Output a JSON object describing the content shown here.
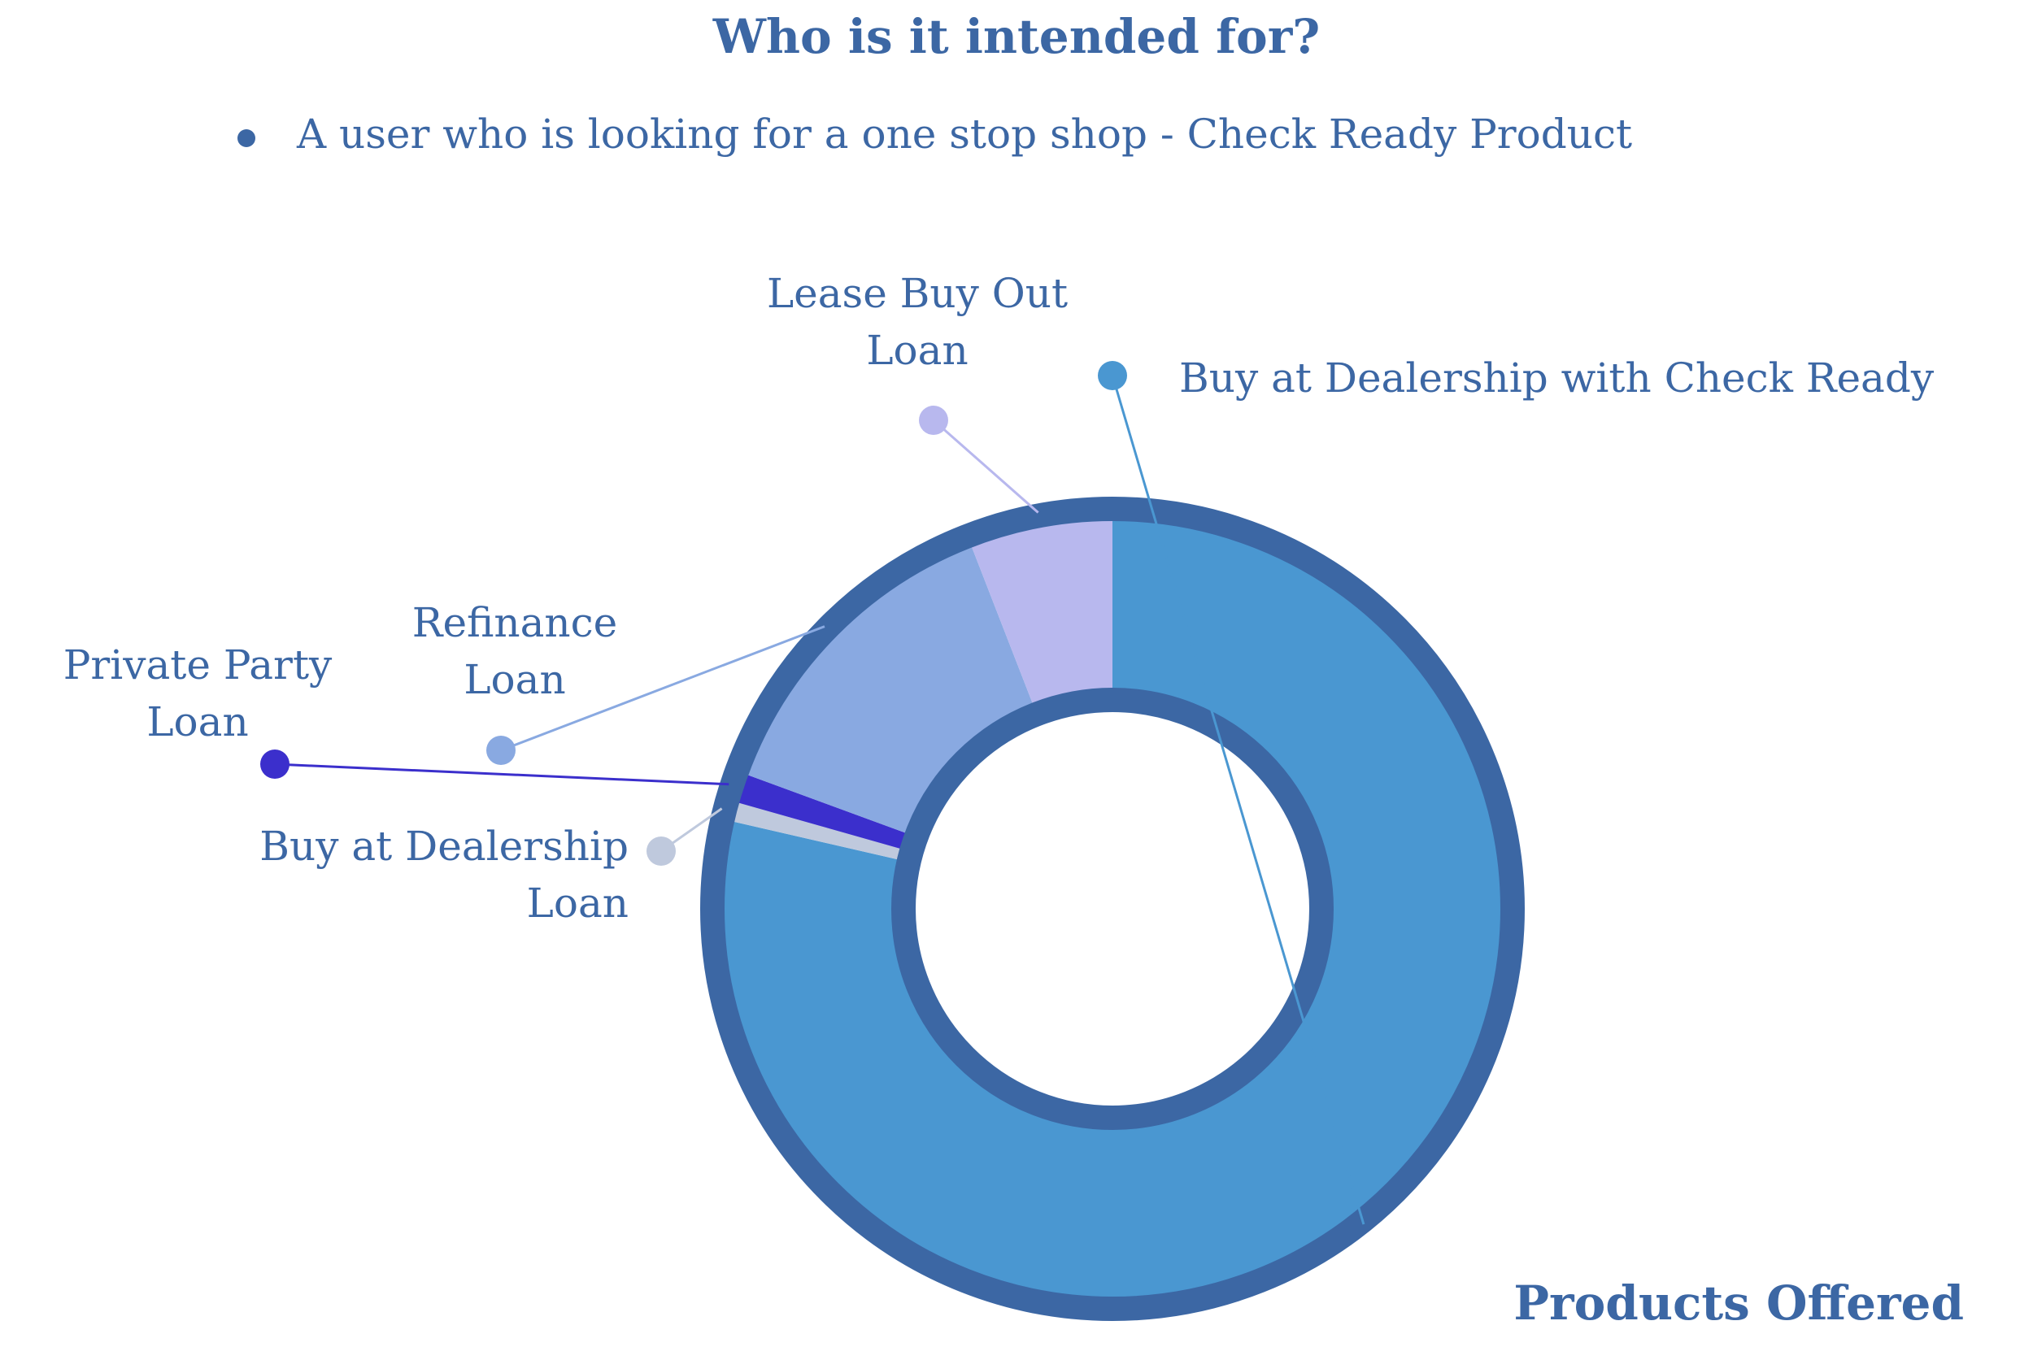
{
  "title": "Who is it intended for?",
  "bullet_text": "A user who is looking for a one stop shop - Check Ready Product",
  "footer_label": "Products Offered",
  "colors": {
    "text": "#3C67A4",
    "ring_outline": "#3C67A4",
    "background": "#FFFFFF"
  },
  "chart_data": {
    "type": "pie",
    "variant": "donut",
    "title": "Products Offered",
    "legend": "none",
    "slices": [
      {
        "label": "Buy at Dealership with Check Ready",
        "label_lines": [
          "Buy at Dealership with Check Ready"
        ],
        "value": 78.6,
        "color": "#4A97D1"
      },
      {
        "label": "Buy at Dealership Loan",
        "label_lines": [
          "Buy at Dealership",
          "Loan"
        ],
        "value": 0.8,
        "color": "#BFC9DD"
      },
      {
        "label": "Private Party Loan",
        "label_lines": [
          "Private Party",
          "Loan"
        ],
        "value": 1.2,
        "color": "#3B2FCC"
      },
      {
        "label": "Refinance Loan",
        "label_lines": [
          "Refinance",
          "Loan"
        ],
        "value": 13.5,
        "color": "#89A9E1"
      },
      {
        "label": "Lease Buy Out Loan",
        "label_lines": [
          "Lease Buy Out",
          "Loan"
        ],
        "value": 5.9,
        "color": "#B8B8EE"
      }
    ]
  }
}
